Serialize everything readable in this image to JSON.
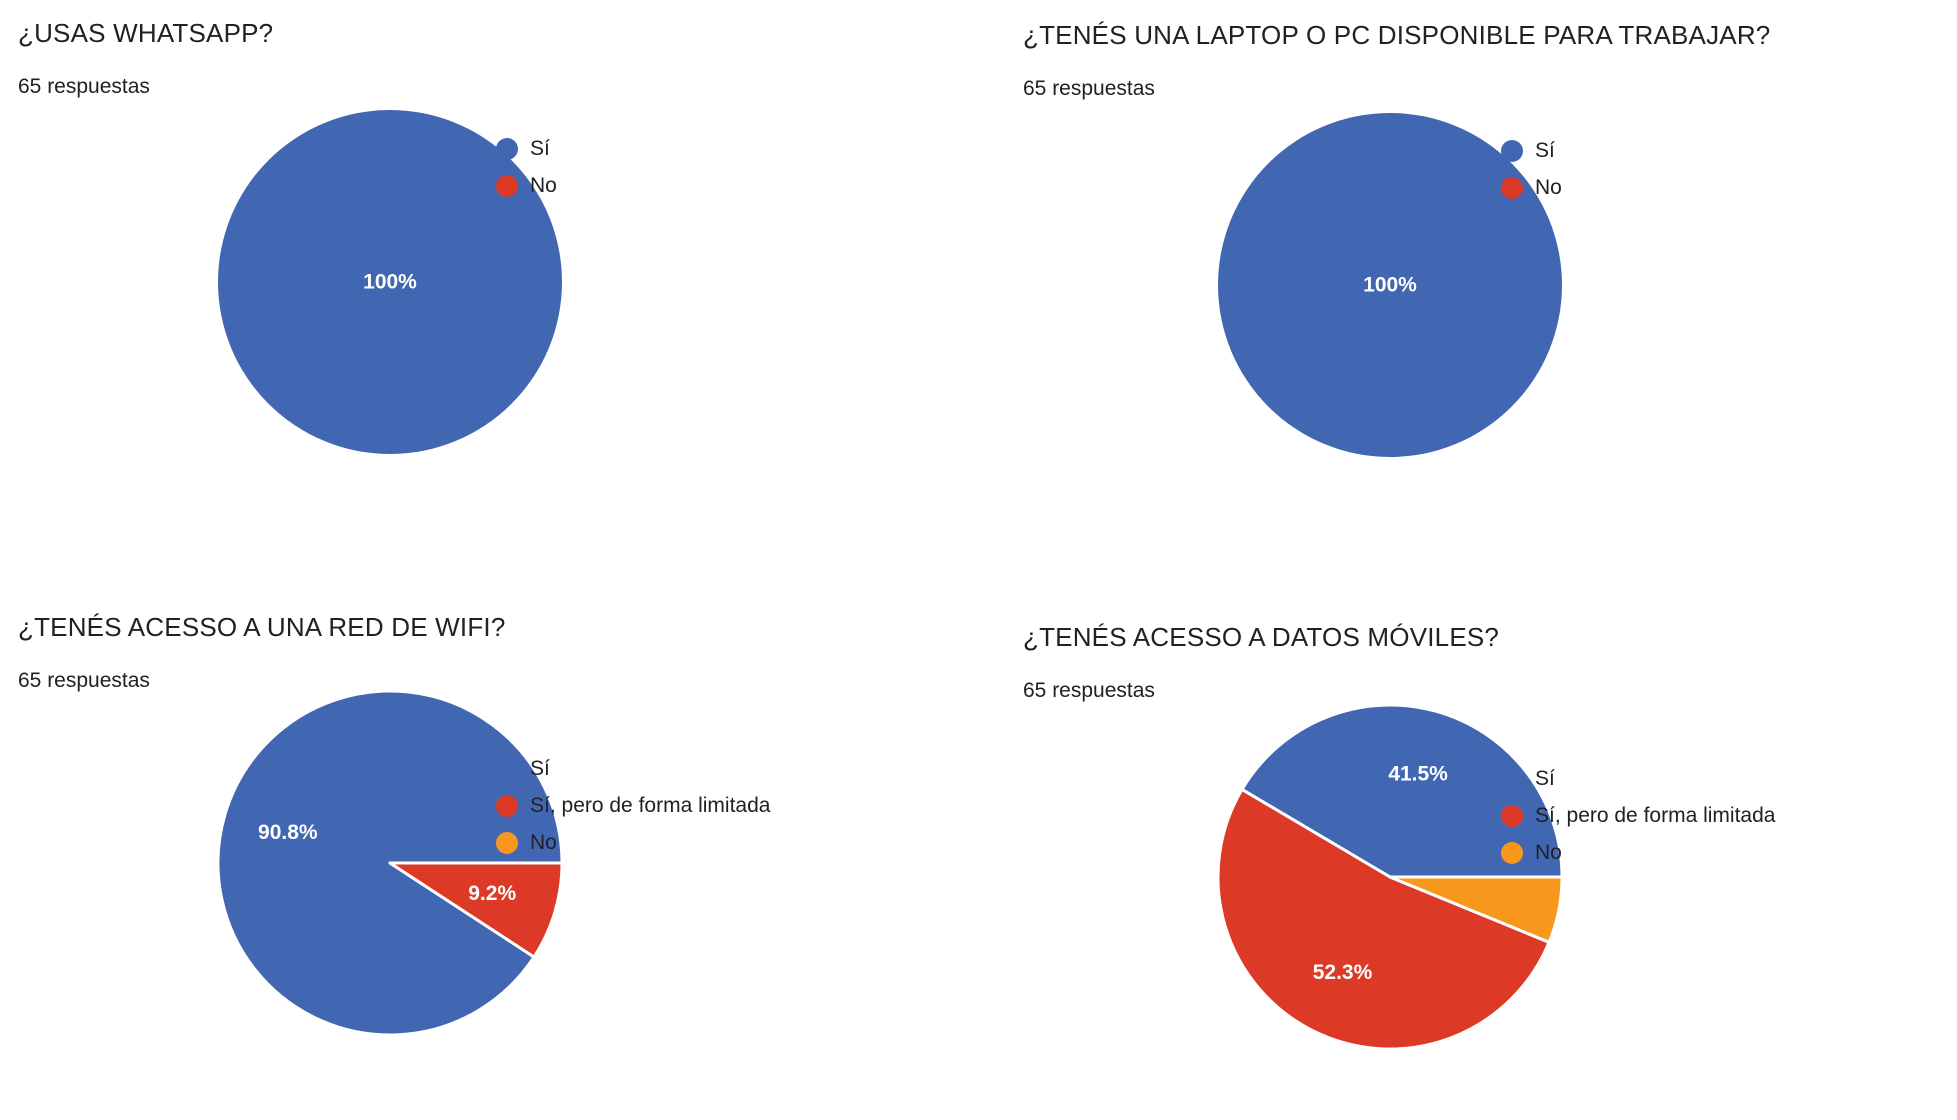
{
  "palette": {
    "blue": "#4267b2",
    "red": "#dc3a26",
    "orange": "#f7981d"
  },
  "chart_data": [
    {
      "type": "pie",
      "title": "¿USAS WHATSAPP?",
      "subtitle": "65 respuestas",
      "categories": [
        "Sí",
        "No"
      ],
      "values": [
        100,
        0
      ],
      "labels": [
        "100%",
        ""
      ],
      "colors": [
        "#4267b2",
        "#dc3a26"
      ],
      "legend": "right"
    },
    {
      "type": "pie",
      "title": "¿TENÉS UNA LAPTOP O PC DISPONIBLE PARA TRABAJAR?",
      "subtitle": "65 respuestas",
      "categories": [
        "Sí",
        "No"
      ],
      "values": [
        100,
        0
      ],
      "labels": [
        "100%",
        ""
      ],
      "colors": [
        "#4267b2",
        "#dc3a26"
      ],
      "legend": "right"
    },
    {
      "type": "pie",
      "title": "¿TENÉS ACESSO A UNA RED DE WIFI?",
      "subtitle": "65 respuestas",
      "categories": [
        "Sí",
        "Sí, pero de forma limitada",
        "No"
      ],
      "values": [
        90.8,
        9.2,
        0
      ],
      "labels": [
        "90.8%",
        "9.2%",
        ""
      ],
      "colors": [
        "#4267b2",
        "#dc3a26",
        "#f7981d"
      ],
      "legend": "right"
    },
    {
      "type": "pie",
      "title": "¿TENÉS ACESSO A DATOS MÓVILES?",
      "subtitle": "65 respuestas",
      "categories": [
        "Sí",
        "Sí, pero de forma limitada",
        "No"
      ],
      "values": [
        41.5,
        52.3,
        6.2
      ],
      "labels": [
        "41.5%",
        "52.3%",
        ""
      ],
      "colors": [
        "#4267b2",
        "#dc3a26",
        "#f7981d"
      ],
      "legend": "right"
    }
  ]
}
